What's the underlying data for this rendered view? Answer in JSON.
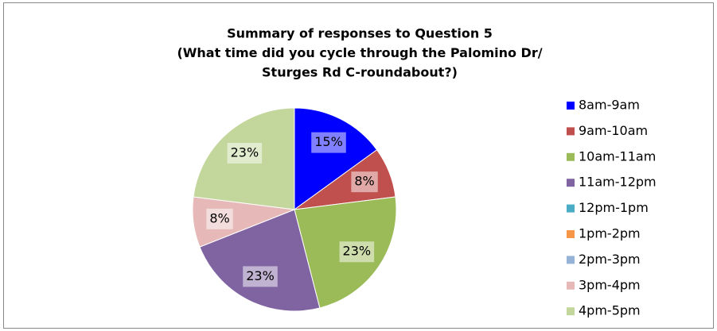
{
  "chart_data": {
    "type": "pie",
    "title": [
      "Summary of responses to Question 5",
      "(What time did you cycle through the Palomino Dr/",
      "Sturges Rd C-roundabout?)"
    ],
    "categories": [
      "8am-9am",
      "9am-10am",
      "10am-11am",
      "11am-12pm",
      "12pm-1pm",
      "1pm-2pm",
      "2pm-3pm",
      "3pm-4pm",
      "4pm-5pm"
    ],
    "values": [
      15,
      8,
      23,
      23,
      0,
      0,
      0,
      8,
      23
    ],
    "value_labels": [
      "15%",
      "8%",
      "23%",
      "23%",
      null,
      null,
      null,
      "8%",
      "23%"
    ],
    "colors": [
      "#0000ff",
      "#c0504d",
      "#9bbb59",
      "#8064a2",
      "#4bacc6",
      "#f79646",
      "#95b3d7",
      "#e6b9b8",
      "#c3d69b"
    ],
    "legend": "right"
  }
}
